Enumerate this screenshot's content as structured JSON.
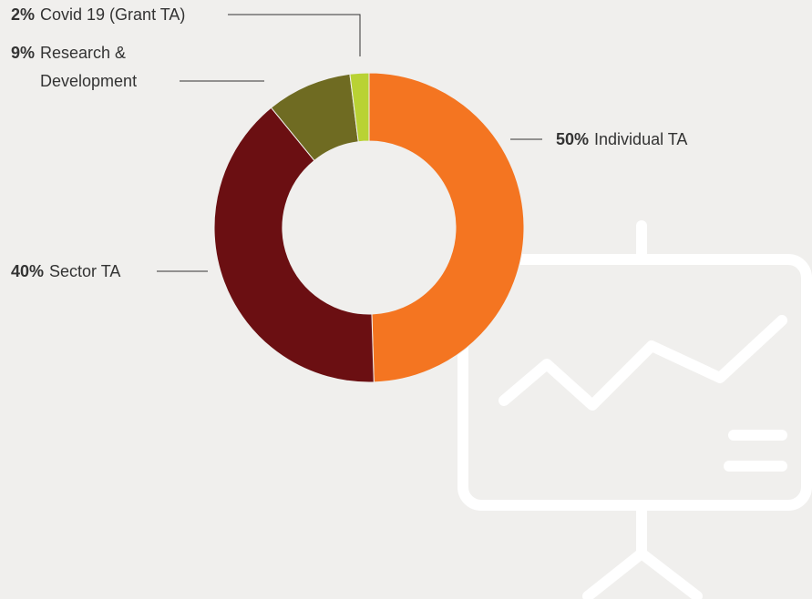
{
  "chart_data": {
    "type": "donut",
    "categories": [
      "Individual TA",
      "Sector TA",
      "Research & Development",
      "Covid 19 (Grant TA)"
    ],
    "values": [
      50,
      40,
      9,
      2
    ],
    "value_labels": [
      "50%",
      "40%",
      "9%",
      "2%"
    ],
    "colors": [
      "#f47521",
      "#6b0f12",
      "#6f6b22",
      "#b9d234"
    ]
  }
}
